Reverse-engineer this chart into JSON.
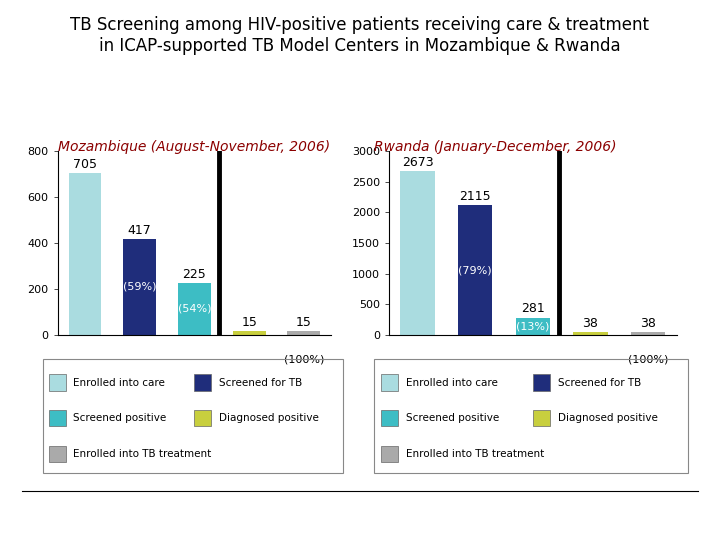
{
  "title": "TB Screening among HIV-positive patients receiving care & treatment\nin ICAP-supported TB Model Centers in Mozambique & Rwanda",
  "title_fontsize": 12,
  "subtitle_moz": "Mozambique (August-November, 2006)",
  "subtitle_rwa": "Rwanda (January-December, 2006)",
  "subtitle_color": "#8B0000",
  "subtitle_fontsize": 10,
  "moz": {
    "values": [
      705,
      417,
      225,
      15,
      15
    ],
    "pct_labels": [
      "",
      "(59%)",
      "(54%)",
      "",
      ""
    ],
    "colors": [
      "#aadce0",
      "#1f2d7b",
      "#3dbdc4",
      "#c8cf3e",
      "#aaaaaa"
    ],
    "ylim": [
      0,
      800
    ],
    "yticks": [
      0,
      200,
      400,
      600,
      800
    ],
    "100pct_label": "(100%)"
  },
  "rwa": {
    "values": [
      2673,
      2115,
      281,
      38,
      38
    ],
    "pct_labels": [
      "",
      "(79%)",
      "(13%)",
      "",
      ""
    ],
    "colors": [
      "#aadce0",
      "#1f2d7b",
      "#3dbdc4",
      "#c8cf3e",
      "#aaaaaa"
    ],
    "ylim": [
      0,
      3000
    ],
    "yticks": [
      0,
      500,
      1000,
      1500,
      2000,
      2500,
      3000
    ],
    "100pct_label": "(100%)"
  },
  "legend_labels": [
    "Enrolled into care",
    "Screened for TB",
    "Screened positive",
    "Diagnosed positive",
    "Enrolled into TB treatment"
  ],
  "legend_colors": [
    "#aadce0",
    "#1f2d7b",
    "#3dbdc4",
    "#c8cf3e",
    "#aaaaaa"
  ]
}
